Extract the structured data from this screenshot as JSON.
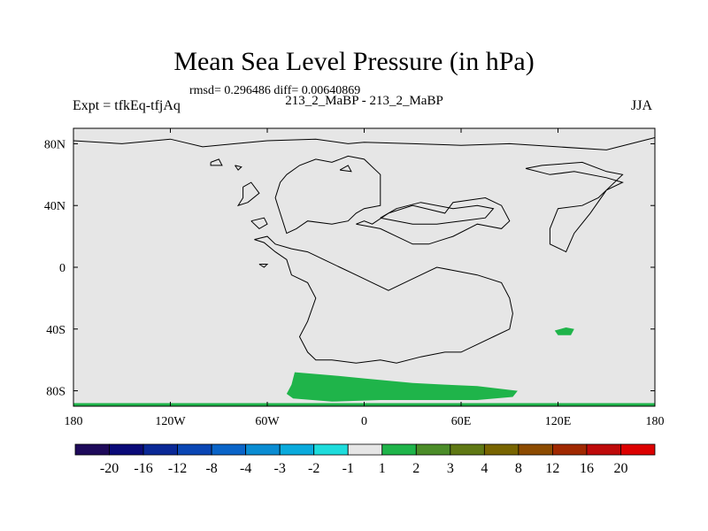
{
  "title": "Mean Sea Level Pressure (in hPa)",
  "stats": "rmsd= 0.296486 diff= 0.00640869",
  "subtitle": "213_2_MaBP - 213_2_MaBP",
  "left_label": "Expt = tfkEq-tfjAq",
  "right_label": "JJA",
  "colors": {
    "ocean": "#e6e6e6",
    "coast": "#000000",
    "positive_anomaly": "#1fb44a"
  },
  "chart_data": {
    "type": "heatmap",
    "projection": "cylindrical-equidistant",
    "x_range": [
      -180,
      180
    ],
    "y_range": [
      -90,
      90
    ],
    "x_ticks": [
      {
        "value": -180,
        "label": "180"
      },
      {
        "value": -120,
        "label": "120W"
      },
      {
        "value": -60,
        "label": "60W"
      },
      {
        "value": 0,
        "label": "0"
      },
      {
        "value": 60,
        "label": "60E"
      },
      {
        "value": 120,
        "label": "120E"
      },
      {
        "value": 180,
        "label": "180"
      }
    ],
    "y_ticks": [
      {
        "value": 80,
        "label": "80N"
      },
      {
        "value": 40,
        "label": "40N"
      },
      {
        "value": 0,
        "label": "0"
      },
      {
        "value": -40,
        "label": "40S"
      },
      {
        "value": -80,
        "label": "80S"
      }
    ],
    "colorbar": {
      "colors": [
        "#1e0a5a",
        "#0a0a78",
        "#0a2896",
        "#0a46b4",
        "#0a64c8",
        "#0a8cd2",
        "#0aaadc",
        "#1edcdc",
        "#e6e6e6",
        "#1fb44a",
        "#4b8c28",
        "#5f7814",
        "#786400",
        "#8c4b00",
        "#a02800",
        "#be0a0a",
        "#dc0000"
      ],
      "labels": [
        "-20",
        "-16",
        "-12",
        "-8",
        "-4",
        "-3",
        "-2",
        "-1",
        "1",
        "2",
        "3",
        "4",
        "8",
        "12",
        "16",
        "20"
      ]
    },
    "anomaly_regions": [
      {
        "name": "southern-ocean-positive",
        "value_range": "1 to 2",
        "points": [
          [
            -43,
            -68
          ],
          [
            -20,
            -70
          ],
          [
            0,
            -72
          ],
          [
            30,
            -75
          ],
          [
            50,
            -76
          ],
          [
            70,
            -77
          ],
          [
            95,
            -80
          ],
          [
            92,
            -84
          ],
          [
            70,
            -86
          ],
          [
            40,
            -86
          ],
          [
            10,
            -86
          ],
          [
            -20,
            -87
          ],
          [
            -44,
            -85
          ],
          [
            -48,
            -82
          ],
          [
            -45,
            -76
          ]
        ]
      },
      {
        "name": "indian-ocean-positive",
        "value_range": "1 to 2",
        "points": [
          [
            118,
            -41
          ],
          [
            125,
            -39
          ],
          [
            130,
            -40
          ],
          [
            128,
            -44
          ],
          [
            120,
            -44
          ]
        ]
      },
      {
        "name": "south-pole-band",
        "value_range": "1 to 2",
        "points": [
          [
            -180,
            -88
          ],
          [
            180,
            -88
          ],
          [
            180,
            -90
          ],
          [
            -180,
            -90
          ]
        ]
      }
    ],
    "coastlines": [
      [
        [
          -180,
          82
        ],
        [
          -150,
          80
        ],
        [
          -120,
          83
        ],
        [
          -100,
          78
        ],
        [
          -80,
          80
        ],
        [
          -60,
          82
        ],
        [
          -30,
          83
        ],
        [
          -10,
          80
        ],
        [
          0,
          81
        ],
        [
          30,
          80
        ],
        [
          60,
          79
        ],
        [
          90,
          80
        ],
        [
          120,
          78
        ],
        [
          150,
          76
        ],
        [
          180,
          84
        ]
      ],
      [
        [
          -95,
          68
        ],
        [
          -90,
          70
        ],
        [
          -88,
          66
        ],
        [
          -95,
          66
        ],
        [
          -95,
          68
        ]
      ],
      [
        [
          -80,
          66
        ],
        [
          -76,
          65
        ],
        [
          -78,
          63
        ],
        [
          -80,
          66
        ]
      ],
      [
        [
          -15,
          63
        ],
        [
          -10,
          66
        ],
        [
          -8,
          62
        ],
        [
          -15,
          63
        ]
      ],
      [
        [
          -48,
          60
        ],
        [
          -40,
          66
        ],
        [
          -30,
          70
        ],
        [
          -20,
          68
        ],
        [
          -10,
          72
        ],
        [
          0,
          70
        ],
        [
          10,
          60
        ],
        [
          10,
          40
        ],
        [
          0,
          38
        ],
        [
          -5,
          35
        ],
        [
          -10,
          30
        ],
        [
          -20,
          28
        ],
        [
          -35,
          30
        ],
        [
          -42,
          25
        ],
        [
          -48,
          22
        ],
        [
          -52,
          35
        ],
        [
          -55,
          45
        ],
        [
          -52,
          55
        ],
        [
          -48,
          60
        ]
      ],
      [
        [
          -75,
          52
        ],
        [
          -70,
          55
        ],
        [
          -65,
          48
        ],
        [
          -72,
          42
        ],
        [
          -78,
          40
        ],
        [
          -75,
          45
        ],
        [
          -75,
          52
        ]
      ],
      [
        [
          -70,
          30
        ],
        [
          -65,
          25
        ],
        [
          -60,
          28
        ],
        [
          -62,
          32
        ],
        [
          -70,
          30
        ]
      ],
      [
        [
          -68,
          18
        ],
        [
          -62,
          16
        ],
        [
          -55,
          10
        ],
        [
          -48,
          5
        ],
        [
          -45,
          -5
        ],
        [
          -35,
          -10
        ],
        [
          -30,
          -20
        ],
        [
          -35,
          -35
        ],
        [
          -40,
          -45
        ],
        [
          -35,
          -55
        ],
        [
          -30,
          -60
        ],
        [
          -20,
          -60
        ],
        [
          -5,
          -62
        ],
        [
          10,
          -60
        ],
        [
          20,
          -62
        ],
        [
          35,
          -58
        ],
        [
          50,
          -55
        ],
        [
          60,
          -55
        ],
        [
          70,
          -50
        ],
        [
          80,
          -45
        ],
        [
          90,
          -40
        ],
        [
          92,
          -30
        ],
        [
          90,
          -20
        ],
        [
          85,
          -10
        ],
        [
          70,
          -5
        ],
        [
          55,
          -2
        ],
        [
          45,
          0
        ],
        [
          35,
          -5
        ],
        [
          25,
          -10
        ],
        [
          15,
          -15
        ],
        [
          5,
          -10
        ],
        [
          -5,
          -5
        ],
        [
          -15,
          0
        ],
        [
          -25,
          5
        ],
        [
          -35,
          10
        ],
        [
          -45,
          12
        ],
        [
          -55,
          15
        ],
        [
          -60,
          20
        ],
        [
          -68,
          18
        ]
      ],
      [
        [
          -65,
          2
        ],
        [
          -62,
          0
        ],
        [
          -60,
          2
        ],
        [
          -65,
          2
        ]
      ],
      [
        [
          -5,
          28
        ],
        [
          0,
          30
        ],
        [
          5,
          28
        ],
        [
          15,
          35
        ],
        [
          30,
          40
        ],
        [
          50,
          35
        ],
        [
          55,
          42
        ],
        [
          75,
          45
        ],
        [
          85,
          40
        ],
        [
          90,
          30
        ],
        [
          85,
          25
        ],
        [
          70,
          28
        ],
        [
          55,
          20
        ],
        [
          40,
          15
        ],
        [
          30,
          15
        ],
        [
          20,
          20
        ],
        [
          10,
          25
        ],
        [
          -5,
          28
        ]
      ],
      [
        [
          10,
          32
        ],
        [
          20,
          38
        ],
        [
          35,
          42
        ],
        [
          55,
          38
        ],
        [
          70,
          40
        ],
        [
          80,
          38
        ],
        [
          75,
          32
        ],
        [
          60,
          30
        ],
        [
          45,
          28
        ],
        [
          30,
          28
        ],
        [
          10,
          32
        ]
      ],
      [
        [
          100,
          64
        ],
        [
          110,
          66
        ],
        [
          135,
          68
        ],
        [
          150,
          62
        ],
        [
          160,
          60
        ],
        [
          145,
          45
        ],
        [
          135,
          40
        ],
        [
          120,
          38
        ],
        [
          115,
          25
        ],
        [
          115,
          15
        ],
        [
          125,
          10
        ],
        [
          130,
          22
        ],
        [
          140,
          35
        ],
        [
          150,
          50
        ],
        [
          160,
          55
        ],
        [
          150,
          58
        ],
        [
          130,
          62
        ],
        [
          115,
          60
        ],
        [
          100,
          64
        ]
      ]
    ]
  }
}
